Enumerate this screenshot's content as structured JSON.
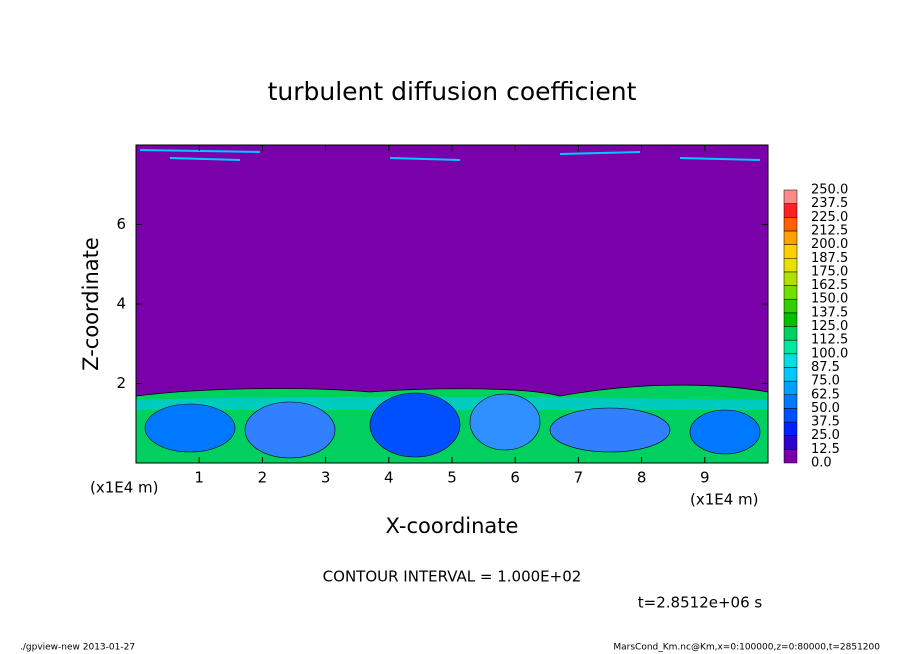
{
  "chart_data": {
    "type": "contour",
    "title": "turbulent diffusion coefficient",
    "xlabel": "X-coordinate",
    "ylabel": "Z-coordinate",
    "xunit": "(x1E4 m)",
    "yunit": "(x1E4 m)",
    "xlim": [
      0,
      10
    ],
    "ylim": [
      0,
      8
    ],
    "xticks": [
      1,
      2,
      3,
      4,
      5,
      6,
      7,
      8,
      9
    ],
    "yticks": [
      2,
      4,
      6
    ],
    "levels": [
      {
        "value": 0,
        "label": "0.0"
      },
      {
        "value": 12.5,
        "label": "12.5"
      },
      {
        "value": 25,
        "label": "25.0"
      },
      {
        "value": 37.5,
        "label": "37.5"
      },
      {
        "value": 50,
        "label": "50.0"
      },
      {
        "value": 62.5,
        "label": "62.5"
      },
      {
        "value": 75,
        "label": "75.0"
      },
      {
        "value": 87.5,
        "label": "87.5"
      },
      {
        "value": 100,
        "label": "100.0"
      },
      {
        "value": 112.5,
        "label": "112.5"
      },
      {
        "value": 125,
        "label": "125.0"
      },
      {
        "value": 137.5,
        "label": "137.5"
      },
      {
        "value": 150,
        "label": "150.0"
      },
      {
        "value": 162.5,
        "label": "162.5"
      },
      {
        "value": 175,
        "label": "175.0"
      },
      {
        "value": 187.5,
        "label": "187.5"
      },
      {
        "value": 200,
        "label": "200.0"
      },
      {
        "value": 212.5,
        "label": "212.5"
      },
      {
        "value": 225,
        "label": "225.0"
      },
      {
        "value": 237.5,
        "label": "237.5"
      },
      {
        "value": 250,
        "label": "250.0"
      }
    ],
    "level_colors": [
      "#7a00aa",
      "#3000d0",
      "#0020ff",
      "#0050ff",
      "#0078ff",
      "#00a0ff",
      "#00c8ff",
      "#00e0e0",
      "#00e8a0",
      "#00d060",
      "#00c000",
      "#30d000",
      "#70e000",
      "#b0e000",
      "#e8e000",
      "#ffd000",
      "#ffa000",
      "#ff6000",
      "#ff2020",
      "#ff8888"
    ],
    "contour_interval": "CONTOUR INTERVAL = 1.000E+02",
    "time": "t=2.8512e+06 s",
    "footer_left": "./gpview-new  2013-01-27",
    "footer_right": "MarsCond_Km.nc@Km,x=0:100000,z=0:80000,t=2851200"
  }
}
